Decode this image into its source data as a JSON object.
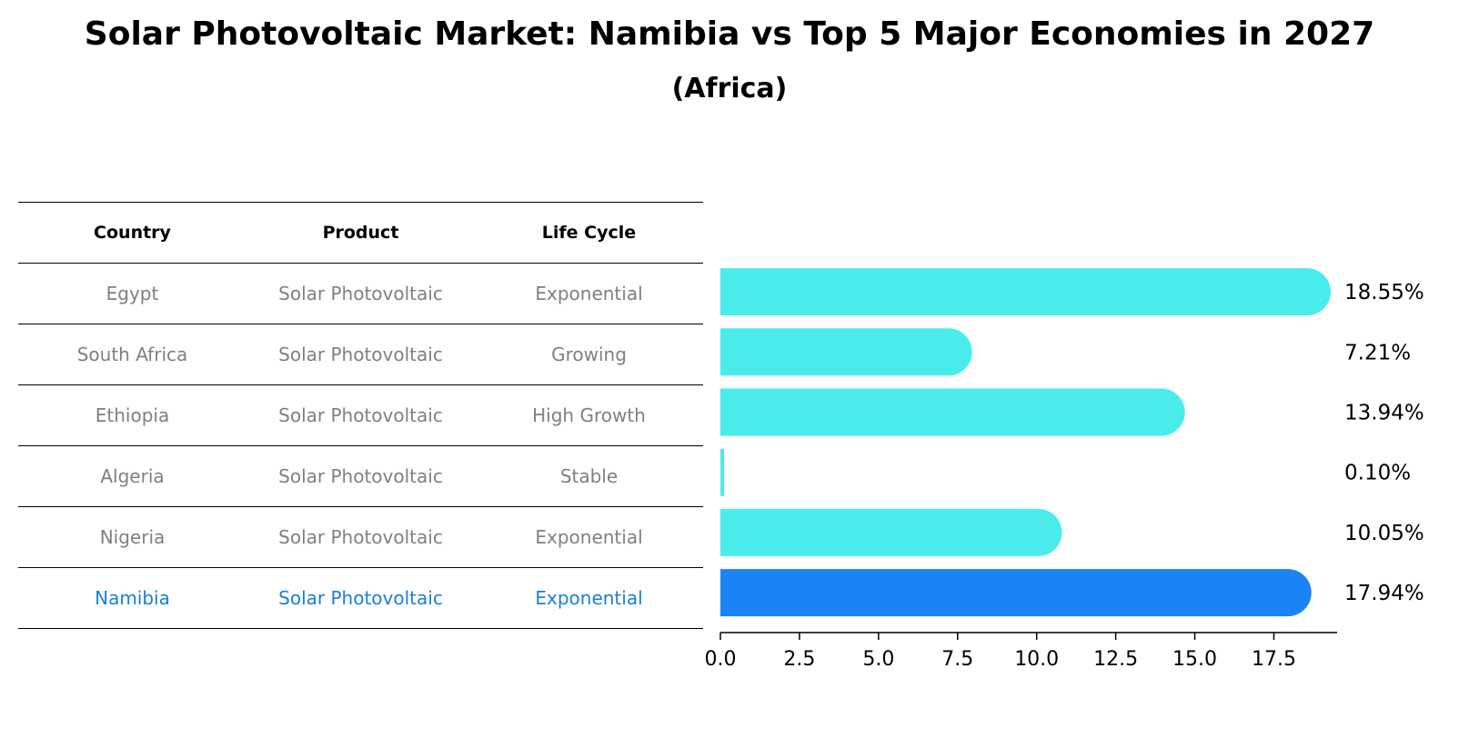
{
  "title": "Solar Photovoltaic Market: Namibia vs Top 5 Major Economies in 2027",
  "subtitle": "(Africa)",
  "table": {
    "headers": [
      "Country",
      "Product",
      "Life Cycle"
    ],
    "rows": [
      {
        "country": "Egypt",
        "product": "Solar Photovoltaic",
        "life_cycle": "Exponential"
      },
      {
        "country": "South Africa",
        "product": "Solar Photovoltaic",
        "life_cycle": "Growing"
      },
      {
        "country": "Ethiopia",
        "product": "Solar Photovoltaic",
        "life_cycle": "High Growth"
      },
      {
        "country": "Algeria",
        "product": "Solar Photovoltaic",
        "life_cycle": "Stable"
      },
      {
        "country": "Nigeria",
        "product": "Solar Photovoltaic",
        "life_cycle": "Exponential"
      },
      {
        "country": "Namibia",
        "product": "Solar Photovoltaic",
        "life_cycle": "Exponential"
      }
    ]
  },
  "chart_data": {
    "type": "bar",
    "orientation": "horizontal",
    "title": "Solar Photovoltaic Market: Namibia vs Top 5 Major Economies in 2027",
    "subtitle": "(Africa)",
    "categories": [
      "Egypt",
      "South Africa",
      "Ethiopia",
      "Algeria",
      "Nigeria",
      "Namibia"
    ],
    "values": [
      18.55,
      7.21,
      13.94,
      0.1,
      10.05,
      17.94
    ],
    "value_labels": [
      "18.55%",
      "7.21%",
      "13.94%",
      "0.10%",
      "10.05%",
      "17.94%"
    ],
    "highlight": "Namibia",
    "xlim": [
      0,
      19.5
    ],
    "xticks": [
      0.0,
      2.5,
      5.0,
      7.5,
      10.0,
      12.5,
      15.0,
      17.5
    ],
    "xtick_labels": [
      "0.0",
      "2.5",
      "5.0",
      "7.5",
      "10.0",
      "12.5",
      "15.0",
      "17.5"
    ],
    "xlabel": "",
    "ylabel": "",
    "grid": false,
    "colors": {
      "default": "#4aeceb",
      "highlight": "#1a84f5"
    }
  }
}
